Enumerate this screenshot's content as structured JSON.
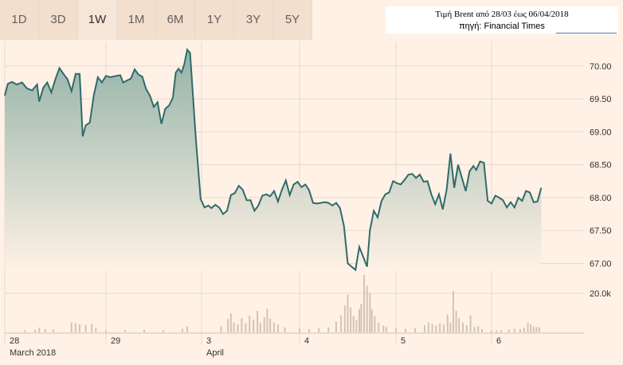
{
  "tabs": [
    "1D",
    "3D",
    "1W",
    "1M",
    "6M",
    "1Y",
    "3Y",
    "5Y"
  ],
  "active_tab": "1W",
  "info_box": {
    "line1": "Τιμή Brent από 28/03 έως 06/04/2018",
    "line2": "πηγή: Financial Times"
  },
  "colors": {
    "line": "#2f6b6a",
    "area_top": "#94b3a8",
    "area_bottom": "#fff1e5",
    "volume": "#d4c3b6",
    "grid": "#e6d9ce",
    "background": "#fff1e5"
  },
  "chart_data": {
    "type": "area",
    "title": "",
    "xlabel": "",
    "ylabel": "",
    "ylim": [
      66.8,
      70.35
    ],
    "y_ticks": [
      "70.00",
      "69.50",
      "69.00",
      "68.50",
      "68.00",
      "67.50",
      "67.00"
    ],
    "x_ticks": [
      {
        "day": "28",
        "sub": "March 2018",
        "t": 0
      },
      {
        "day": "29",
        "sub": "",
        "t": 1
      },
      {
        "day": "3",
        "sub": "April",
        "t": 2
      },
      {
        "day": "4",
        "sub": "",
        "t": 3
      },
      {
        "day": "5",
        "sub": "",
        "t": 4
      },
      {
        "day": "6",
        "sub": "",
        "t": 5
      }
    ],
    "grid": true,
    "price_series": [
      [
        0.0,
        69.55
      ],
      [
        0.03,
        69.73
      ],
      [
        0.07,
        69.76
      ],
      [
        0.12,
        69.72
      ],
      [
        0.17,
        69.75
      ],
      [
        0.22,
        69.66
      ],
      [
        0.27,
        69.63
      ],
      [
        0.32,
        69.72
      ],
      [
        0.34,
        69.46
      ],
      [
        0.38,
        69.67
      ],
      [
        0.42,
        69.75
      ],
      [
        0.46,
        69.6
      ],
      [
        0.5,
        69.8
      ],
      [
        0.54,
        69.97
      ],
      [
        0.58,
        69.88
      ],
      [
        0.62,
        69.8
      ],
      [
        0.66,
        69.62
      ],
      [
        0.7,
        69.88
      ],
      [
        0.74,
        69.88
      ],
      [
        0.77,
        68.93
      ],
      [
        0.8,
        69.1
      ],
      [
        0.84,
        69.14
      ],
      [
        0.88,
        69.56
      ],
      [
        0.92,
        69.83
      ],
      [
        0.96,
        69.75
      ],
      [
        1.0,
        69.85
      ],
      [
        1.05,
        69.83
      ],
      [
        1.1,
        69.85
      ],
      [
        1.15,
        69.86
      ],
      [
        1.18,
        69.75
      ],
      [
        1.22,
        69.78
      ],
      [
        1.26,
        69.81
      ],
      [
        1.3,
        69.95
      ],
      [
        1.34,
        69.87
      ],
      [
        1.38,
        69.84
      ],
      [
        1.42,
        69.65
      ],
      [
        1.46,
        69.55
      ],
      [
        1.5,
        69.38
      ],
      [
        1.54,
        69.45
      ],
      [
        1.58,
        69.12
      ],
      [
        1.62,
        69.35
      ],
      [
        1.66,
        69.4
      ],
      [
        1.7,
        69.52
      ],
      [
        1.73,
        69.9
      ],
      [
        1.76,
        69.96
      ],
      [
        1.79,
        69.9
      ],
      [
        1.82,
        70.03
      ],
      [
        1.85,
        70.25
      ],
      [
        1.88,
        70.2
      ],
      [
        1.94,
        68.9
      ],
      [
        1.99,
        67.98
      ],
      [
        2.03,
        67.85
      ],
      [
        2.07,
        67.88
      ],
      [
        2.1,
        67.84
      ],
      [
        2.14,
        67.89
      ],
      [
        2.18,
        67.85
      ],
      [
        2.22,
        67.75
      ],
      [
        2.26,
        67.8
      ],
      [
        2.3,
        68.04
      ],
      [
        2.34,
        68.07
      ],
      [
        2.38,
        68.18
      ],
      [
        2.42,
        68.12
      ],
      [
        2.46,
        67.96
      ],
      [
        2.5,
        67.96
      ],
      [
        2.54,
        67.8
      ],
      [
        2.58,
        67.88
      ],
      [
        2.62,
        68.03
      ],
      [
        2.66,
        68.05
      ],
      [
        2.7,
        68.02
      ],
      [
        2.74,
        68.1
      ],
      [
        2.78,
        67.94
      ],
      [
        2.82,
        68.12
      ],
      [
        2.86,
        68.26
      ],
      [
        2.9,
        68.04
      ],
      [
        2.94,
        68.2
      ],
      [
        2.98,
        68.24
      ],
      [
        3.02,
        68.16
      ],
      [
        3.06,
        68.2
      ],
      [
        3.1,
        68.11
      ],
      [
        3.14,
        67.92
      ],
      [
        3.18,
        67.91
      ],
      [
        3.22,
        67.92
      ],
      [
        3.26,
        67.93
      ],
      [
        3.3,
        67.92
      ],
      [
        3.34,
        67.88
      ],
      [
        3.38,
        67.92
      ],
      [
        3.42,
        67.84
      ],
      [
        3.46,
        67.57
      ],
      [
        3.5,
        67.0
      ],
      [
        3.54,
        66.95
      ],
      [
        3.58,
        66.9
      ],
      [
        3.62,
        67.25
      ],
      [
        3.66,
        67.1
      ],
      [
        3.7,
        66.95
      ],
      [
        3.73,
        67.5
      ],
      [
        3.77,
        67.8
      ],
      [
        3.81,
        67.7
      ],
      [
        3.85,
        67.95
      ],
      [
        3.89,
        68.05
      ],
      [
        3.93,
        68.08
      ],
      [
        3.97,
        68.25
      ],
      [
        4.01,
        68.22
      ],
      [
        4.05,
        68.2
      ],
      [
        4.09,
        68.27
      ],
      [
        4.13,
        68.35
      ],
      [
        4.17,
        68.36
      ],
      [
        4.21,
        68.3
      ],
      [
        4.25,
        68.35
      ],
      [
        4.29,
        68.24
      ],
      [
        4.33,
        68.25
      ],
      [
        4.37,
        68.05
      ],
      [
        4.41,
        67.9
      ],
      [
        4.45,
        68.05
      ],
      [
        4.49,
        67.82
      ],
      [
        4.53,
        68.12
      ],
      [
        4.57,
        68.67
      ],
      [
        4.61,
        68.15
      ],
      [
        4.65,
        68.5
      ],
      [
        4.69,
        68.3
      ],
      [
        4.73,
        68.1
      ],
      [
        4.77,
        68.4
      ],
      [
        4.81,
        68.48
      ],
      [
        4.84,
        68.42
      ],
      [
        4.88,
        68.55
      ],
      [
        4.92,
        68.53
      ],
      [
        4.96,
        67.95
      ],
      [
        5.0,
        67.91
      ],
      [
        5.04,
        68.03
      ],
      [
        5.08,
        68.0
      ],
      [
        5.12,
        67.96
      ],
      [
        5.16,
        67.85
      ],
      [
        5.2,
        67.93
      ],
      [
        5.24,
        67.85
      ],
      [
        5.28,
        68.0
      ],
      [
        5.32,
        67.95
      ],
      [
        5.36,
        68.1
      ],
      [
        5.4,
        68.08
      ],
      [
        5.44,
        67.93
      ],
      [
        5.48,
        67.94
      ],
      [
        5.52,
        68.15
      ]
    ],
    "volume_series": {
      "y_tick": "20.0k",
      "max": 32000,
      "values": [
        [
          0.2,
          1200
        ],
        [
          0.3,
          1500
        ],
        [
          0.34,
          2600
        ],
        [
          0.4,
          1800
        ],
        [
          0.48,
          1600
        ],
        [
          0.66,
          5500
        ],
        [
          0.7,
          5000
        ],
        [
          0.74,
          4500
        ],
        [
          0.8,
          4200
        ],
        [
          0.86,
          4800
        ],
        [
          0.9,
          2400
        ],
        [
          1.0,
          1000
        ],
        [
          1.2,
          1200
        ],
        [
          1.4,
          1500
        ],
        [
          1.6,
          1200
        ],
        [
          1.8,
          2000
        ],
        [
          1.85,
          3200
        ],
        [
          2.2,
          3500
        ],
        [
          2.27,
          7500
        ],
        [
          2.3,
          10500
        ],
        [
          2.33,
          5500
        ],
        [
          2.37,
          4500
        ],
        [
          2.41,
          8000
        ],
        [
          2.45,
          5000
        ],
        [
          2.49,
          9200
        ],
        [
          2.53,
          7000
        ],
        [
          2.57,
          12000
        ],
        [
          2.6,
          5500
        ],
        [
          2.64,
          8500
        ],
        [
          2.67,
          13200
        ],
        [
          2.7,
          7800
        ],
        [
          2.74,
          5500
        ],
        [
          2.78,
          4500
        ],
        [
          2.85,
          2800
        ],
        [
          3.0,
          2000
        ],
        [
          3.1,
          1800
        ],
        [
          3.2,
          2200
        ],
        [
          3.3,
          2800
        ],
        [
          3.38,
          6000
        ],
        [
          3.43,
          9500
        ],
        [
          3.47,
          15000
        ],
        [
          3.5,
          21000
        ],
        [
          3.53,
          14000
        ],
        [
          3.56,
          9000
        ],
        [
          3.59,
          7000
        ],
        [
          3.62,
          13000
        ],
        [
          3.64,
          16000
        ],
        [
          3.67,
          32000
        ],
        [
          3.7,
          26000
        ],
        [
          3.73,
          22000
        ],
        [
          3.75,
          13000
        ],
        [
          3.78,
          9000
        ],
        [
          3.82,
          5500
        ],
        [
          3.87,
          3800
        ],
        [
          3.9,
          3000
        ],
        [
          4.0,
          2200
        ],
        [
          4.1,
          2000
        ],
        [
          4.2,
          2200
        ],
        [
          4.3,
          4000
        ],
        [
          4.34,
          5500
        ],
        [
          4.38,
          4600
        ],
        [
          4.42,
          3800
        ],
        [
          4.46,
          5000
        ],
        [
          4.5,
          4200
        ],
        [
          4.54,
          10000
        ],
        [
          4.57,
          5500
        ],
        [
          4.6,
          23000
        ],
        [
          4.63,
          12000
        ],
        [
          4.66,
          8000
        ],
        [
          4.7,
          5500
        ],
        [
          4.74,
          4000
        ],
        [
          4.78,
          9500
        ],
        [
          4.82,
          3000
        ],
        [
          4.86,
          3500
        ],
        [
          4.9,
          1800
        ],
        [
          5.0,
          1000
        ],
        [
          5.05,
          1000
        ],
        [
          5.1,
          1200
        ],
        [
          5.18,
          1600
        ],
        [
          5.24,
          2000
        ],
        [
          5.3,
          1800
        ],
        [
          5.34,
          2500
        ],
        [
          5.38,
          5500
        ],
        [
          5.41,
          4500
        ],
        [
          5.44,
          3200
        ],
        [
          5.47,
          3000
        ],
        [
          5.5,
          2800
        ]
      ]
    }
  }
}
